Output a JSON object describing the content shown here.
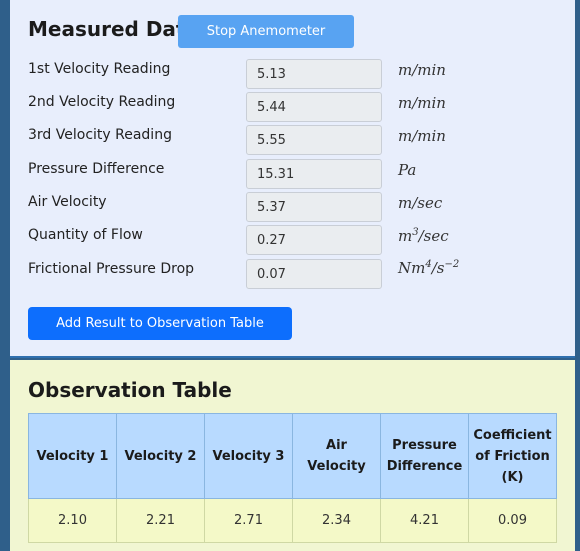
{
  "measured": {
    "title": "Measured Data",
    "stop_button": "Stop Anemometer",
    "rows": [
      {
        "label": "1st Velocity Reading",
        "value": "5.13",
        "unit": "m/min"
      },
      {
        "label": "2nd Velocity Reading",
        "value": "5.44",
        "unit": "m/min"
      },
      {
        "label": "3rd Velocity Reading",
        "value": "5.55",
        "unit": "m/min"
      },
      {
        "label": "Pressure Difference",
        "value": "15.31",
        "unit": "Pa"
      },
      {
        "label": "Air Velocity",
        "value": "5.37",
        "unit": "m/sec"
      },
      {
        "label": "Quantity of Flow",
        "value": "0.27",
        "unit_base": "m",
        "unit_sup": "3",
        "unit_tail": "/sec"
      },
      {
        "label": "Frictional Pressure Drop",
        "value": "0.07",
        "unit_base": "Nm",
        "unit_sup": "4",
        "unit_mid": "/s",
        "unit_sup2": "−2"
      }
    ],
    "add_button": "Add Result to Observation Table"
  },
  "observation": {
    "title": "Observation Table",
    "headers": [
      "Velocity 1",
      "Velocity 2",
      "Velocity 3",
      "Air Velocity",
      "Pressure Difference",
      "Coefficient of Friction (K)"
    ],
    "rows": [
      [
        "2.10",
        "2.21",
        "2.71",
        "2.34",
        "4.21",
        "0.09"
      ]
    ]
  }
}
